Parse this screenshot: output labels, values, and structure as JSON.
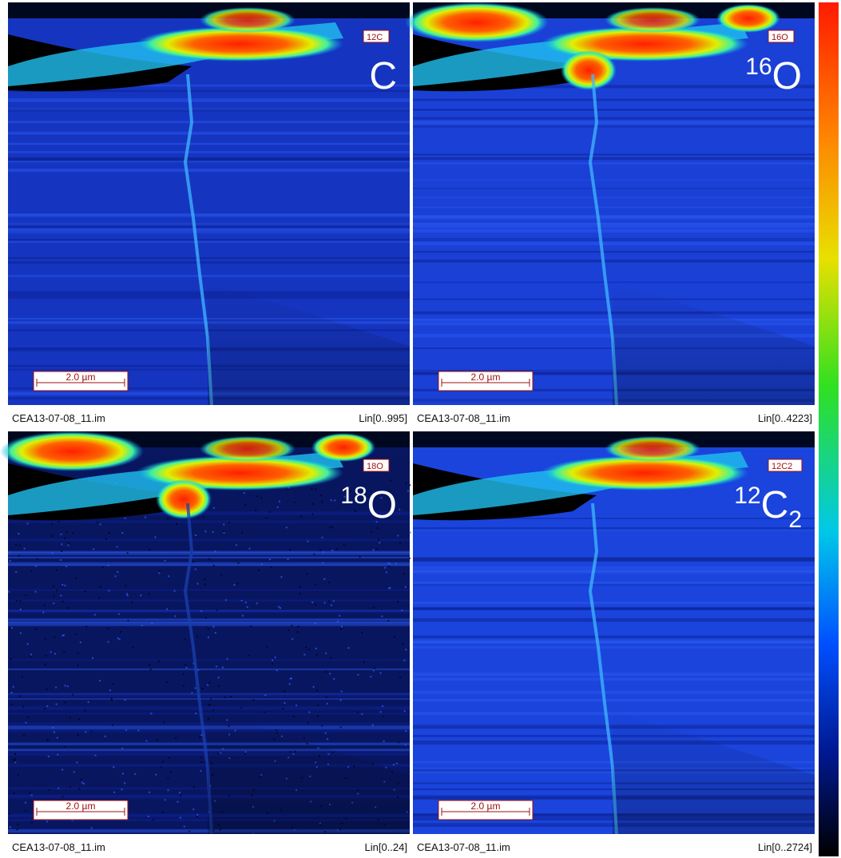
{
  "panels": [
    {
      "tag": "12C",
      "label": {
        "main": "C"
      },
      "scale_bar": "2.0 µm",
      "file": "CEA13-07-08_11.im",
      "range": "Lin[0..995]"
    },
    {
      "tag": "16O",
      "label": {
        "sup": "16",
        "main": "O"
      },
      "scale_bar": "2.0 µm",
      "file": "CEA13-07-08_11.im",
      "range": "Lin[0..4223]"
    },
    {
      "tag": "18O",
      "label": {
        "sup": "18",
        "main": "O"
      },
      "scale_bar": "2.0 µm",
      "file": "CEA13-07-08_11.im",
      "range": "Lin[0..24]"
    },
    {
      "tag": "12C2",
      "label": {
        "sup": "12",
        "main": "C",
        "sub": "2"
      },
      "scale_bar": "2.0 µm",
      "file": "CEA13-07-08_11.im",
      "range": "Lin[0..2724]"
    }
  ]
}
